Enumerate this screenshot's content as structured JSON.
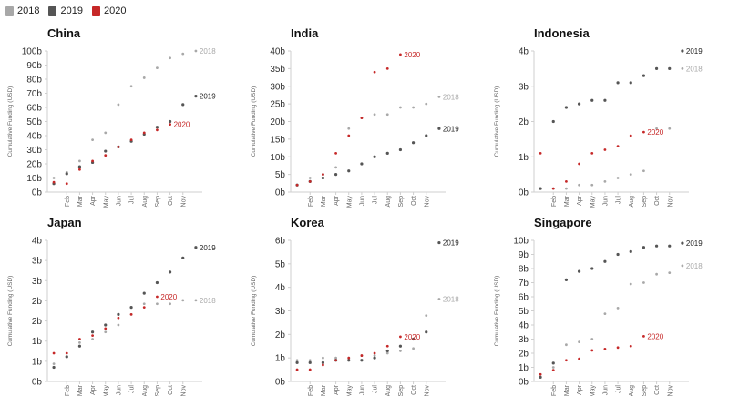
{
  "legend": [
    {
      "label": "2018",
      "color": "#a8a8a8"
    },
    {
      "label": "2019",
      "color": "#555555"
    },
    {
      "label": "2020",
      "color": "#c62828"
    }
  ],
  "chart_data": [
    {
      "type": "scatter",
      "title": "China",
      "ylabel": "Cumulative Funding (USD)",
      "x": [
        "Jan",
        "Feb",
        "Mar",
        "Apr",
        "May",
        "Jun",
        "Jul",
        "Aug",
        "Sep",
        "Oct",
        "Nov",
        "Dec"
      ],
      "x_tick_labels": [
        "Feb",
        "Mar",
        "Apr",
        "May",
        "Jun",
        "Jul",
        "Aug",
        "Sep",
        "Oct",
        "Nov"
      ],
      "y_ticks": [
        "0b",
        "10b",
        "20b",
        "30b",
        "40b",
        "50b",
        "60b",
        "70b",
        "80b",
        "90b",
        "100b"
      ],
      "ylim": [
        0,
        100
      ],
      "series": [
        {
          "name": "2018",
          "values": [
            10,
            14,
            22,
            37,
            42,
            62,
            75,
            81,
            88,
            95,
            98,
            100
          ],
          "end_label": "2018"
        },
        {
          "name": "2019",
          "values": [
            6,
            13,
            18,
            21,
            29,
            32,
            36,
            41,
            46,
            50,
            62,
            68
          ],
          "end_label": "2019"
        },
        {
          "name": "2020",
          "values": [
            7,
            6,
            16,
            22,
            26,
            32,
            37,
            42,
            44,
            48,
            null,
            null
          ],
          "end_label": "2020"
        }
      ]
    },
    {
      "type": "scatter",
      "title": "India",
      "ylabel": "Cumulative Funding (USD)",
      "x": [
        "Jan",
        "Feb",
        "Mar",
        "Apr",
        "May",
        "Jun",
        "Jul",
        "Aug",
        "Sep",
        "Oct",
        "Nov",
        "Dec"
      ],
      "x_tick_labels": [
        "Feb",
        "Mar",
        "Apr",
        "May",
        "Jun",
        "Jul",
        "Aug",
        "Sep",
        "Oct",
        "Nov"
      ],
      "y_ticks": [
        "0b",
        "5b",
        "10b",
        "15b",
        "20b",
        "25b",
        "30b",
        "35b",
        "40b"
      ],
      "ylim": [
        0,
        40
      ],
      "series": [
        {
          "name": "2018",
          "values": [
            2,
            4,
            5,
            7,
            18,
            21,
            22,
            22,
            24,
            24,
            25,
            27
          ],
          "end_label": "2018"
        },
        {
          "name": "2019",
          "values": [
            2,
            3,
            4,
            5,
            6,
            8,
            10,
            11,
            12,
            14,
            16,
            18
          ],
          "end_label": "2019"
        },
        {
          "name": "2020",
          "values": [
            2,
            3,
            5,
            11,
            16,
            21,
            34,
            35,
            39,
            null,
            null,
            null
          ],
          "end_label": "2020"
        }
      ]
    },
    {
      "type": "scatter",
      "title": "Indonesia",
      "ylabel": "Cumulative Funding (USD)",
      "x": [
        "Jan",
        "Feb",
        "Mar",
        "Apr",
        "May",
        "Jun",
        "Jul",
        "Aug",
        "Sep",
        "Oct",
        "Nov",
        "Dec"
      ],
      "x_tick_labels": [
        "Feb",
        "Mar",
        "Apr",
        "May",
        "Jun",
        "Jul",
        "Aug",
        "Sep",
        "Oct",
        "Nov"
      ],
      "y_ticks": [
        "0b",
        "1b",
        "2b",
        "3b",
        "4b"
      ],
      "ylim": [
        0,
        4
      ],
      "series": [
        {
          "name": "2018",
          "values": [
            0.1,
            0.1,
            0.1,
            0.2,
            0.2,
            0.3,
            0.4,
            0.5,
            0.6,
            1.8,
            1.8,
            3.5
          ],
          "end_label": "2018"
        },
        {
          "name": "2019",
          "values": [
            0.1,
            2.0,
            2.4,
            2.5,
            2.6,
            2.6,
            3.1,
            3.1,
            3.3,
            3.5,
            3.5,
            4.0
          ],
          "end_label": "2019"
        },
        {
          "name": "2020",
          "values": [
            1.1,
            0.1,
            0.3,
            0.8,
            1.1,
            1.2,
            1.3,
            1.6,
            1.7,
            null,
            null,
            null
          ],
          "end_label": "2020"
        }
      ]
    },
    {
      "type": "scatter",
      "title": "Japan",
      "ylabel": "Cumulative Funding (USD)",
      "x": [
        "Jan",
        "Feb",
        "Mar",
        "Apr",
        "May",
        "Jun",
        "Jul",
        "Aug",
        "Sep",
        "Oct",
        "Nov",
        "Dec"
      ],
      "x_tick_labels": [
        "Feb",
        "Mar",
        "Apr",
        "May",
        "Jun",
        "Jul",
        "Aug",
        "Sep",
        "Oct",
        "Nov"
      ],
      "y_ticks": [
        "0b",
        "1b",
        "1b",
        "2b",
        "2b",
        "3b",
        "3b",
        "4b"
      ],
      "ylim": [
        0,
        4
      ],
      "series": [
        {
          "name": "2018",
          "values": [
            0.5,
            0.7,
            1.1,
            1.2,
            1.4,
            1.6,
            1.9,
            2.2,
            2.2,
            2.2,
            2.3,
            2.3
          ],
          "end_label": "2018"
        },
        {
          "name": "2019",
          "values": [
            0.4,
            0.7,
            1.0,
            1.4,
            1.6,
            1.9,
            2.1,
            2.5,
            2.8,
            3.1,
            3.5,
            3.8
          ],
          "end_label": "2019"
        },
        {
          "name": "2020",
          "values": [
            0.8,
            0.8,
            1.2,
            1.3,
            1.5,
            1.8,
            1.9,
            2.1,
            2.4,
            null,
            null,
            null
          ],
          "end_label": "2020"
        }
      ]
    },
    {
      "type": "scatter",
      "title": "Korea",
      "ylabel": "Cumulative Funding (USD)",
      "x": [
        "Jan",
        "Feb",
        "Mar",
        "Apr",
        "May",
        "Jun",
        "Jul",
        "Aug",
        "Sep",
        "Oct",
        "Nov",
        "Dec"
      ],
      "x_tick_labels": [
        "Feb",
        "Mar",
        "Apr",
        "May",
        "Jun",
        "Jul",
        "Aug",
        "Sep",
        "Oct",
        "Nov"
      ],
      "y_ticks": [
        "0b",
        "1b",
        "2b",
        "3b",
        "4b",
        "5b",
        "6b"
      ],
      "ylim": [
        0,
        6
      ],
      "series": [
        {
          "name": "2018",
          "values": [
            0.9,
            0.9,
            1.0,
            1.0,
            1.0,
            1.1,
            1.1,
            1.2,
            1.3,
            1.4,
            2.8,
            3.5
          ],
          "end_label": "2018"
        },
        {
          "name": "2019",
          "values": [
            0.8,
            0.8,
            0.8,
            0.9,
            0.9,
            0.9,
            1.0,
            1.3,
            1.5,
            1.8,
            2.1,
            5.9
          ],
          "end_label": "2019"
        },
        {
          "name": "2020",
          "values": [
            0.5,
            0.5,
            0.7,
            0.9,
            1.0,
            1.1,
            1.2,
            1.5,
            1.9,
            null,
            null,
            null
          ],
          "end_label": "2020"
        }
      ]
    },
    {
      "type": "scatter",
      "title": "Singapore",
      "ylabel": "Cumulative Funding (USD)",
      "x": [
        "Jan",
        "Feb",
        "Mar",
        "Apr",
        "May",
        "Jun",
        "Jul",
        "Aug",
        "Sep",
        "Oct",
        "Nov",
        "Dec"
      ],
      "x_tick_labels": [
        "Feb",
        "Mar",
        "Apr",
        "May",
        "Jun",
        "Jul",
        "Aug",
        "Sep",
        "Oct",
        "Nov"
      ],
      "y_ticks": [
        "0b",
        "1b",
        "2b",
        "3b",
        "4b",
        "5b",
        "6b",
        "7b",
        "8b",
        "9b",
        "10b"
      ],
      "ylim": [
        0,
        10
      ],
      "series": [
        {
          "name": "2018",
          "values": [
            0.5,
            1.0,
            2.6,
            2.8,
            3.0,
            4.8,
            5.2,
            6.9,
            7.0,
            7.6,
            7.7,
            8.2
          ],
          "end_label": "2018"
        },
        {
          "name": "2019",
          "values": [
            0.3,
            1.3,
            7.2,
            7.8,
            8.0,
            8.5,
            9.0,
            9.2,
            9.5,
            9.6,
            9.6,
            9.8
          ],
          "end_label": "2019"
        },
        {
          "name": "2020",
          "values": [
            0.5,
            0.8,
            1.5,
            1.6,
            2.2,
            2.3,
            2.4,
            2.5,
            3.2,
            null,
            null,
            null
          ],
          "end_label": "2020"
        }
      ]
    }
  ]
}
